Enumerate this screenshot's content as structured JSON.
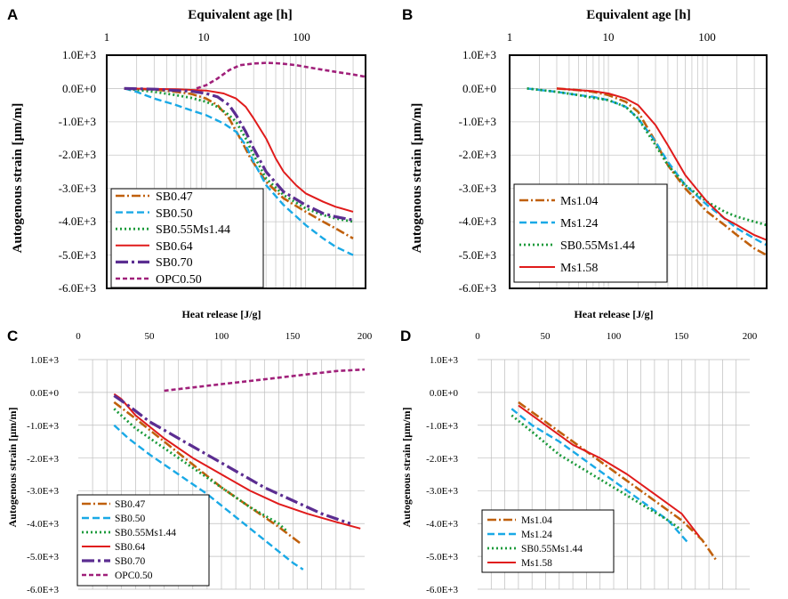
{
  "styles": {
    "SB0.47": {
      "color": "#c0600c",
      "dash": "10,3,2,3",
      "width": 2.6
    },
    "SB0.50": {
      "color": "#19a9e6",
      "dash": "8,4",
      "width": 2.4
    },
    "SB0.55Ms1.44": {
      "color": "#1a9a3a",
      "dash": "2,3",
      "width": 2.8
    },
    "SB0.64": {
      "color": "#e01b1b",
      "dash": "",
      "width": 2
    },
    "SB0.70": {
      "color": "#5b2d91",
      "dash": "14,4,3,4",
      "width": 3.2
    },
    "OPC0.50": {
      "color": "#a0207a",
      "dash": "5,3",
      "width": 2.6
    },
    "Ms1.04": {
      "color": "#c0600c",
      "dash": "10,3,2,3",
      "width": 2.6
    },
    "Ms1.24": {
      "color": "#19a9e6",
      "dash": "8,4",
      "width": 2.4
    },
    "Ms1.58": {
      "color": "#e01b1b",
      "dash": "",
      "width": 2
    }
  },
  "chart_data": [
    {
      "panel": "A",
      "type": "line",
      "xscale": "log",
      "xlabel": "Equivalent age [h]",
      "ylabel": "Autogenous strain [µm/m]",
      "xlim": [
        1,
        400
      ],
      "ylim": [
        -6000,
        1000
      ],
      "xticks": [
        "1",
        "10",
        "100"
      ],
      "yticks": [
        "1.0E+3",
        "0.0E+0",
        "-1.0E+3",
        "-2.0E+3",
        "-3.0E+3",
        "-4.0E+3",
        "-5.0E+3",
        "-6.0E+3"
      ],
      "legend_position": "bottom-left",
      "legend": [
        "SB0.47",
        "SB0.50",
        "SB0.55Ms1.44",
        "SB0.64",
        "SB0.70",
        "OPC0.50"
      ],
      "series": [
        {
          "name": "SB0.47",
          "x": [
            1.5,
            3,
            5,
            7,
            10,
            13,
            17,
            22,
            28,
            40,
            60,
            100,
            150,
            200,
            300
          ],
          "y": [
            0,
            -30,
            -100,
            -160,
            -300,
            -500,
            -900,
            -1500,
            -2100,
            -2800,
            -3300,
            -3700,
            -4000,
            -4200,
            -4500
          ]
        },
        {
          "name": "SB0.50",
          "x": [
            1.5,
            2,
            3,
            5,
            7,
            10,
            15,
            20,
            25,
            30,
            40,
            60,
            100,
            150,
            200,
            300
          ],
          "y": [
            0,
            -100,
            -300,
            -500,
            -650,
            -800,
            -1050,
            -1300,
            -1700,
            -2200,
            -2900,
            -3500,
            -4100,
            -4500,
            -4750,
            -5000
          ]
        },
        {
          "name": "SB0.55Ms1.44",
          "x": [
            1.5,
            3,
            5,
            7,
            10,
            13,
            17,
            20,
            25,
            30,
            40,
            60,
            100,
            150,
            200,
            300
          ],
          "y": [
            0,
            -100,
            -200,
            -280,
            -400,
            -550,
            -800,
            -1000,
            -1500,
            -2000,
            -2700,
            -3200,
            -3600,
            -3800,
            -3900,
            -4000
          ]
        },
        {
          "name": "SB0.64",
          "x": [
            1.5,
            5,
            10,
            15,
            20,
            25,
            30,
            40,
            50,
            60,
            80,
            100,
            150,
            200,
            300
          ],
          "y": [
            0,
            -20,
            -60,
            -150,
            -300,
            -550,
            -900,
            -1500,
            -2100,
            -2500,
            -2900,
            -3150,
            -3400,
            -3550,
            -3700
          ]
        },
        {
          "name": "SB0.70",
          "x": [
            1.5,
            3,
            5,
            7,
            10,
            13,
            17,
            20,
            25,
            30,
            40,
            60,
            100,
            150,
            200,
            300
          ],
          "y": [
            0,
            -20,
            -60,
            -80,
            -150,
            -250,
            -500,
            -800,
            -1300,
            -1800,
            -2500,
            -3100,
            -3500,
            -3750,
            -3850,
            -3950
          ]
        },
        {
          "name": "OPC0.50",
          "x": [
            8,
            10,
            13,
            17,
            22,
            30,
            40,
            50,
            60,
            80,
            100,
            150,
            200,
            300,
            400
          ],
          "y": [
            0,
            100,
            300,
            550,
            700,
            750,
            770,
            760,
            740,
            700,
            650,
            560,
            500,
            420,
            350
          ]
        }
      ]
    },
    {
      "panel": "B",
      "type": "line",
      "xscale": "log",
      "xlabel": "Equivalent age [h]",
      "ylabel": "Autogenous strain [µm/m]",
      "xlim": [
        1,
        400
      ],
      "ylim": [
        -6000,
        1000
      ],
      "xticks": [
        "1",
        "10",
        "100"
      ],
      "yticks": [
        "1.0E+3",
        "0.0E+0",
        "-1.0E+3",
        "-2.0E+3",
        "-3.0E+3",
        "-4.0E+3",
        "-5.0E+3",
        "-6.0E+3"
      ],
      "legend_position": "bottom-left",
      "legend": [
        "Ms1.04",
        "Ms1.24",
        "SB0.55Ms1.44",
        "Ms1.58"
      ],
      "series": [
        {
          "name": "Ms1.04",
          "x": [
            3,
            5,
            7,
            10,
            15,
            20,
            30,
            40,
            60,
            100,
            150,
            200,
            300,
            400
          ],
          "y": [
            0,
            -50,
            -100,
            -200,
            -400,
            -700,
            -1600,
            -2300,
            -3000,
            -3700,
            -4100,
            -4400,
            -4800,
            -5000
          ]
        },
        {
          "name": "Ms1.24",
          "x": [
            1.5,
            3,
            5,
            7,
            10,
            15,
            20,
            30,
            40,
            60,
            100,
            150,
            200,
            300,
            400
          ],
          "y": [
            0,
            -100,
            -200,
            -250,
            -350,
            -550,
            -900,
            -1600,
            -2200,
            -2900,
            -3500,
            -3900,
            -4200,
            -4500,
            -4700
          ]
        },
        {
          "name": "SB0.55Ms1.44",
          "x": [
            1.5,
            3,
            5,
            7,
            10,
            15,
            20,
            30,
            40,
            60,
            100,
            150,
            200,
            300,
            400
          ],
          "y": [
            0,
            -100,
            -200,
            -280,
            -350,
            -550,
            -900,
            -1700,
            -2300,
            -2900,
            -3400,
            -3700,
            -3850,
            -4000,
            -4100
          ]
        },
        {
          "name": "Ms1.58",
          "x": [
            3,
            5,
            7,
            10,
            15,
            20,
            30,
            40,
            60,
            100,
            150,
            200,
            300,
            400
          ],
          "y": [
            0,
            -50,
            -80,
            -150,
            -300,
            -500,
            -1100,
            -1700,
            -2600,
            -3400,
            -3900,
            -4100,
            -4400,
            -4550
          ]
        }
      ]
    },
    {
      "panel": "C",
      "type": "line",
      "xscale": "linear",
      "xlabel": "Heat release [J/g]",
      "ylabel": "Autogenous strain [µm/m]",
      "xlim": [
        0,
        200
      ],
      "ylim": [
        -6000,
        1000
      ],
      "xticks": [
        "0",
        "50",
        "100",
        "150",
        "200"
      ],
      "yticks": [
        "1.0E+3",
        "0.0E+0",
        "-1.0E+3",
        "-2.0E+3",
        "-3.0E+3",
        "-4.0E+3",
        "-5.0E+3",
        "-6.0E+3"
      ],
      "legend_position": "bottom-left",
      "legend": [
        "SB0.47",
        "SB0.50",
        "SB0.55Ms1.44",
        "SB0.64",
        "SB0.70",
        "OPC0.50"
      ],
      "series": [
        {
          "name": "SB0.47",
          "x": [
            25,
            40,
            60,
            80,
            100,
            120,
            140,
            155
          ],
          "y": [
            -300,
            -800,
            -1500,
            -2200,
            -2900,
            -3500,
            -4100,
            -4600
          ]
        },
        {
          "name": "SB0.50",
          "x": [
            25,
            35,
            50,
            70,
            90,
            110,
            130,
            150,
            157
          ],
          "y": [
            -1000,
            -1400,
            -1900,
            -2500,
            -3100,
            -3800,
            -4500,
            -5200,
            -5400
          ]
        },
        {
          "name": "SB0.55Ms1.44",
          "x": [
            25,
            40,
            60,
            80,
            100,
            120,
            140,
            145
          ],
          "y": [
            -500,
            -1100,
            -1700,
            -2300,
            -2900,
            -3500,
            -4000,
            -4200
          ]
        },
        {
          "name": "SB0.64",
          "x": [
            25,
            30,
            40,
            60,
            80,
            100,
            120,
            140,
            160,
            180,
            197
          ],
          "y": [
            -50,
            -200,
            -700,
            -1400,
            -2000,
            -2500,
            -3000,
            -3400,
            -3700,
            -3950,
            -4150
          ]
        },
        {
          "name": "SB0.70",
          "x": [
            25,
            35,
            50,
            70,
            90,
            110,
            130,
            150,
            170,
            190
          ],
          "y": [
            -100,
            -400,
            -900,
            -1400,
            -1900,
            -2400,
            -2900,
            -3300,
            -3700,
            -4000
          ]
        },
        {
          "name": "OPC0.50",
          "x": [
            60,
            80,
            100,
            120,
            140,
            160,
            180,
            200
          ],
          "y": [
            50,
            150,
            250,
            350,
            450,
            550,
            650,
            700
          ]
        }
      ]
    },
    {
      "panel": "D",
      "type": "line",
      "xscale": "linear",
      "xlabel": "Heat release [J/g]",
      "ylabel": "Autogenous strain [µm/m]",
      "xlim": [
        0,
        200
      ],
      "ylim": [
        -6000,
        1000
      ],
      "xticks": [
        "0",
        "50",
        "100",
        "150",
        "200"
      ],
      "yticks": [
        "1.0E+3",
        "0.0E+0",
        "-1.0E+3",
        "-2.0E+3",
        "-3.0E+3",
        "-4.0E+3",
        "-5.0E+3",
        "-6.0E+3"
      ],
      "legend_position": "bottom-left",
      "legend": [
        "Ms1.04",
        "Ms1.24",
        "SB0.55Ms1.44",
        "Ms1.58"
      ],
      "series": [
        {
          "name": "Ms1.04",
          "x": [
            30,
            50,
            70,
            90,
            110,
            130,
            150,
            165,
            175
          ],
          "y": [
            -300,
            -900,
            -1500,
            -2100,
            -2700,
            -3300,
            -3900,
            -4500,
            -5100
          ]
        },
        {
          "name": "Ms1.24",
          "x": [
            25,
            40,
            60,
            80,
            100,
            120,
            140,
            155
          ],
          "y": [
            -500,
            -1000,
            -1500,
            -2100,
            -2700,
            -3300,
            -3900,
            -4600
          ]
        },
        {
          "name": "SB0.55Ms1.44",
          "x": [
            25,
            40,
            60,
            80,
            100,
            120,
            140,
            150
          ],
          "y": [
            -700,
            -1200,
            -1900,
            -2400,
            -2900,
            -3400,
            -3900,
            -4200
          ]
        },
        {
          "name": "Ms1.58",
          "x": [
            30,
            50,
            70,
            90,
            110,
            130,
            150,
            163
          ],
          "y": [
            -400,
            -1000,
            -1600,
            -2000,
            -2500,
            -3100,
            -3700,
            -4400
          ]
        }
      ]
    }
  ]
}
